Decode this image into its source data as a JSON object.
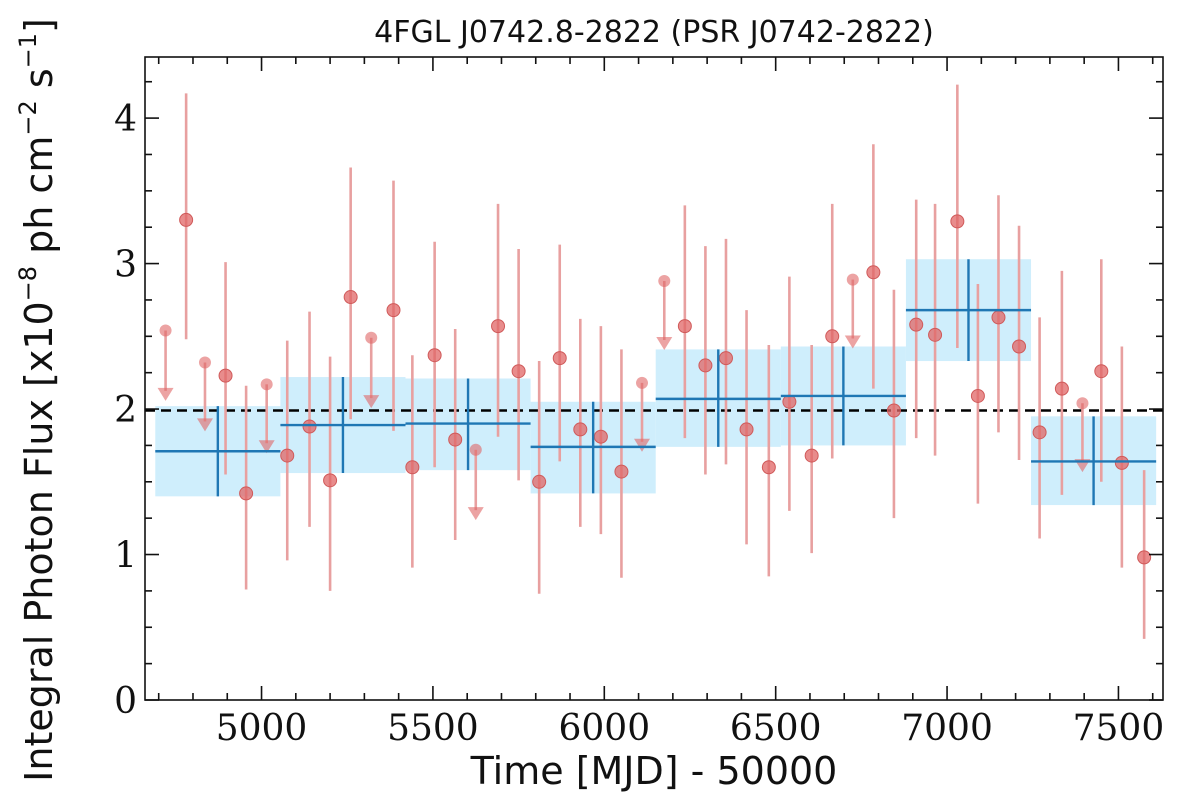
{
  "chart_data": {
    "type": "scatter",
    "title": "4FGL J0742.8-2822 (PSR J0742-2822)",
    "xlabel": "Time [MJD] - 50000",
    "ylabel": "Integral Photon Flux [x10",
    "ylabel_sup1": "−8",
    "ylabel_mid": " ph cm",
    "ylabel_sup2": "−2",
    "ylabel_mid2": " s",
    "ylabel_sup3": "−1",
    "ylabel_end": "]",
    "xlim": [
      4660,
      7630
    ],
    "ylim": [
      0,
      4.42
    ],
    "x_ticks": [
      5000,
      5500,
      6000,
      6500,
      7000,
      7500
    ],
    "y_ticks": [
      0,
      1,
      2,
      3,
      4
    ],
    "x_tick_labels": [
      "5000",
      "5500",
      "6000",
      "6500",
      "7000",
      "7500"
    ],
    "y_tick_labels": [
      "0",
      "1",
      "2",
      "3",
      "4"
    ],
    "mean_flux": 1.99,
    "colors": {
      "points": "#e06666",
      "errorbars": "#e8a0a0",
      "bins_fill": "#cfeefc",
      "bins_line": "#1f77b4",
      "mean_line": "#000000"
    },
    "series": [
      {
        "name": "",
        "kind": "detections",
        "points": [
          {
            "x": 4780,
            "y": 3.3,
            "lo": 2.48,
            "hi": 4.17
          },
          {
            "x": 4895,
            "y": 2.23,
            "lo": 1.55,
            "hi": 3.01
          },
          {
            "x": 4955,
            "y": 1.42,
            "lo": 0.76,
            "hi": 2.16
          },
          {
            "x": 5075,
            "y": 1.68,
            "lo": 0.96,
            "hi": 2.47
          },
          {
            "x": 5140,
            "y": 1.88,
            "lo": 1.19,
            "hi": 2.67
          },
          {
            "x": 5200,
            "y": 1.51,
            "lo": 0.75,
            "hi": 2.36
          },
          {
            "x": 5260,
            "y": 2.77,
            "lo": 1.93,
            "hi": 3.66
          },
          {
            "x": 5385,
            "y": 2.68,
            "lo": 1.85,
            "hi": 3.57
          },
          {
            "x": 5440,
            "y": 1.6,
            "lo": 0.91,
            "hi": 2.37
          },
          {
            "x": 5505,
            "y": 2.37,
            "lo": 1.6,
            "hi": 3.15
          },
          {
            "x": 5565,
            "y": 1.79,
            "lo": 1.1,
            "hi": 2.55
          },
          {
            "x": 5690,
            "y": 2.57,
            "lo": 1.81,
            "hi": 3.41
          },
          {
            "x": 5750,
            "y": 2.26,
            "lo": 1.51,
            "hi": 3.1
          },
          {
            "x": 5810,
            "y": 1.5,
            "lo": 0.73,
            "hi": 2.33
          },
          {
            "x": 5870,
            "y": 2.35,
            "lo": 1.64,
            "hi": 3.13
          },
          {
            "x": 5930,
            "y": 1.86,
            "lo": 1.19,
            "hi": 2.62
          },
          {
            "x": 5990,
            "y": 1.81,
            "lo": 1.14,
            "hi": 2.57
          },
          {
            "x": 6050,
            "y": 1.57,
            "lo": 0.84,
            "hi": 2.41
          },
          {
            "x": 6235,
            "y": 2.57,
            "lo": 1.8,
            "hi": 3.4
          },
          {
            "x": 6295,
            "y": 2.3,
            "lo": 1.55,
            "hi": 3.12
          },
          {
            "x": 6355,
            "y": 2.35,
            "lo": 1.62,
            "hi": 3.17
          },
          {
            "x": 6415,
            "y": 1.86,
            "lo": 1.07,
            "hi": 2.68
          },
          {
            "x": 6480,
            "y": 1.6,
            "lo": 0.85,
            "hi": 2.44
          },
          {
            "x": 6540,
            "y": 2.05,
            "lo": 1.3,
            "hi": 2.91
          },
          {
            "x": 6605,
            "y": 1.68,
            "lo": 1.01,
            "hi": 2.44
          },
          {
            "x": 6665,
            "y": 2.5,
            "lo": 1.66,
            "hi": 3.41
          },
          {
            "x": 6785,
            "y": 2.94,
            "lo": 2.14,
            "hi": 3.82
          },
          {
            "x": 6845,
            "y": 1.99,
            "lo": 1.25,
            "hi": 2.82
          },
          {
            "x": 6910,
            "y": 2.58,
            "lo": 1.8,
            "hi": 3.44
          },
          {
            "x": 6965,
            "y": 2.51,
            "lo": 1.68,
            "hi": 3.41
          },
          {
            "x": 7030,
            "y": 3.29,
            "lo": 2.42,
            "hi": 4.23
          },
          {
            "x": 7090,
            "y": 2.09,
            "lo": 1.35,
            "hi": 2.86
          },
          {
            "x": 7150,
            "y": 2.63,
            "lo": 1.84,
            "hi": 3.47
          },
          {
            "x": 7210,
            "y": 2.43,
            "lo": 1.65,
            "hi": 3.26
          },
          {
            "x": 7270,
            "y": 1.84,
            "lo": 1.11,
            "hi": 2.63
          },
          {
            "x": 7335,
            "y": 2.14,
            "lo": 1.41,
            "hi": 2.95
          },
          {
            "x": 7450,
            "y": 2.26,
            "lo": 1.5,
            "hi": 3.03
          },
          {
            "x": 7510,
            "y": 1.63,
            "lo": 0.91,
            "hi": 2.43
          },
          {
            "x": 7575,
            "y": 0.98,
            "lo": 0.42,
            "hi": 1.58
          }
        ]
      },
      {
        "name": "",
        "kind": "upper_limits",
        "points": [
          {
            "x": 4720,
            "top": 2.54,
            "y": 2.07
          },
          {
            "x": 4835,
            "top": 2.32,
            "y": 1.86
          },
          {
            "x": 5015,
            "top": 2.17,
            "y": 1.71
          },
          {
            "x": 5320,
            "top": 2.49,
            "y": 2.02
          },
          {
            "x": 5625,
            "top": 1.72,
            "y": 1.25
          },
          {
            "x": 6110,
            "top": 2.18,
            "y": 1.72
          },
          {
            "x": 6175,
            "top": 2.88,
            "y": 2.42
          },
          {
            "x": 6725,
            "top": 2.89,
            "y": 2.43
          },
          {
            "x": 7395,
            "top": 2.04,
            "y": 1.58
          }
        ]
      },
      {
        "name": "",
        "kind": "bins",
        "bins": [
          {
            "x0": 4690,
            "x1": 5055,
            "y": 1.71,
            "lo": 1.4,
            "hi": 2.02
          },
          {
            "x0": 5055,
            "x1": 5420,
            "y": 1.89,
            "lo": 1.56,
            "hi": 2.22
          },
          {
            "x0": 5420,
            "x1": 5785,
            "y": 1.9,
            "lo": 1.58,
            "hi": 2.21
          },
          {
            "x0": 5785,
            "x1": 6150,
            "y": 1.74,
            "lo": 1.42,
            "hi": 2.05
          },
          {
            "x0": 6150,
            "x1": 6515,
            "y": 2.07,
            "lo": 1.74,
            "hi": 2.41
          },
          {
            "x0": 6515,
            "x1": 6880,
            "y": 2.09,
            "lo": 1.75,
            "hi": 2.43
          },
          {
            "x0": 6880,
            "x1": 7245,
            "y": 2.68,
            "lo": 2.33,
            "hi": 3.03
          },
          {
            "x0": 7245,
            "x1": 7610,
            "y": 1.64,
            "lo": 1.34,
            "hi": 1.95
          }
        ]
      }
    ]
  }
}
